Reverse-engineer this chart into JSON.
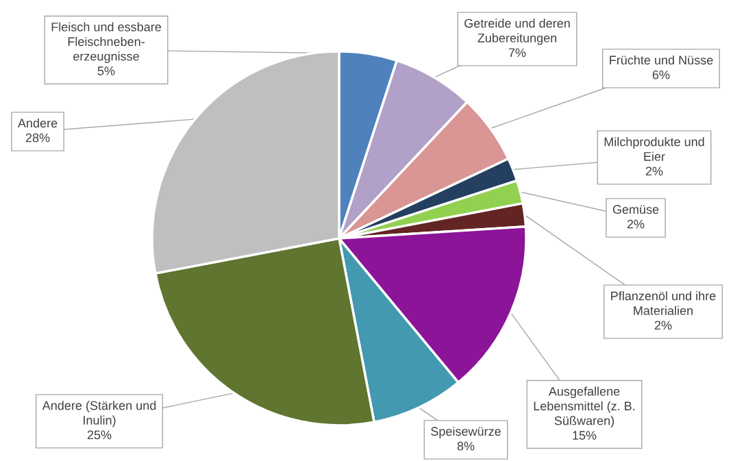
{
  "chart_data": {
    "type": "pie",
    "categories": [
      "Fleisch und essbare\nFleischneben-\nerzeugnisse",
      "Getreide und deren\nZubereitungen",
      "Früchte und Nüsse",
      "Milchprodukte und\nEier",
      "Gemüse",
      "Pflanzenöl und ihre\nMaterialien",
      "Ausgefallene\nLebensmittel (z. B.\nSüßwaren)",
      "Speisewürze",
      "Andere (Stärken und\nInulin)",
      "Andere"
    ],
    "values": [
      5,
      7,
      6,
      2,
      2,
      2,
      15,
      8,
      25,
      28
    ],
    "colors": [
      "#4f81bd",
      "#b1a0c7",
      "#d99694",
      "#243f60",
      "#92d050",
      "#632523",
      "#8b1499",
      "#4299b0",
      "#5f7530",
      "#bfbfbf"
    ],
    "value_labels": [
      "5%",
      "7%",
      "6%",
      "2%",
      "2%",
      "2%",
      "15%",
      "8%",
      "25%",
      "28%"
    ]
  }
}
